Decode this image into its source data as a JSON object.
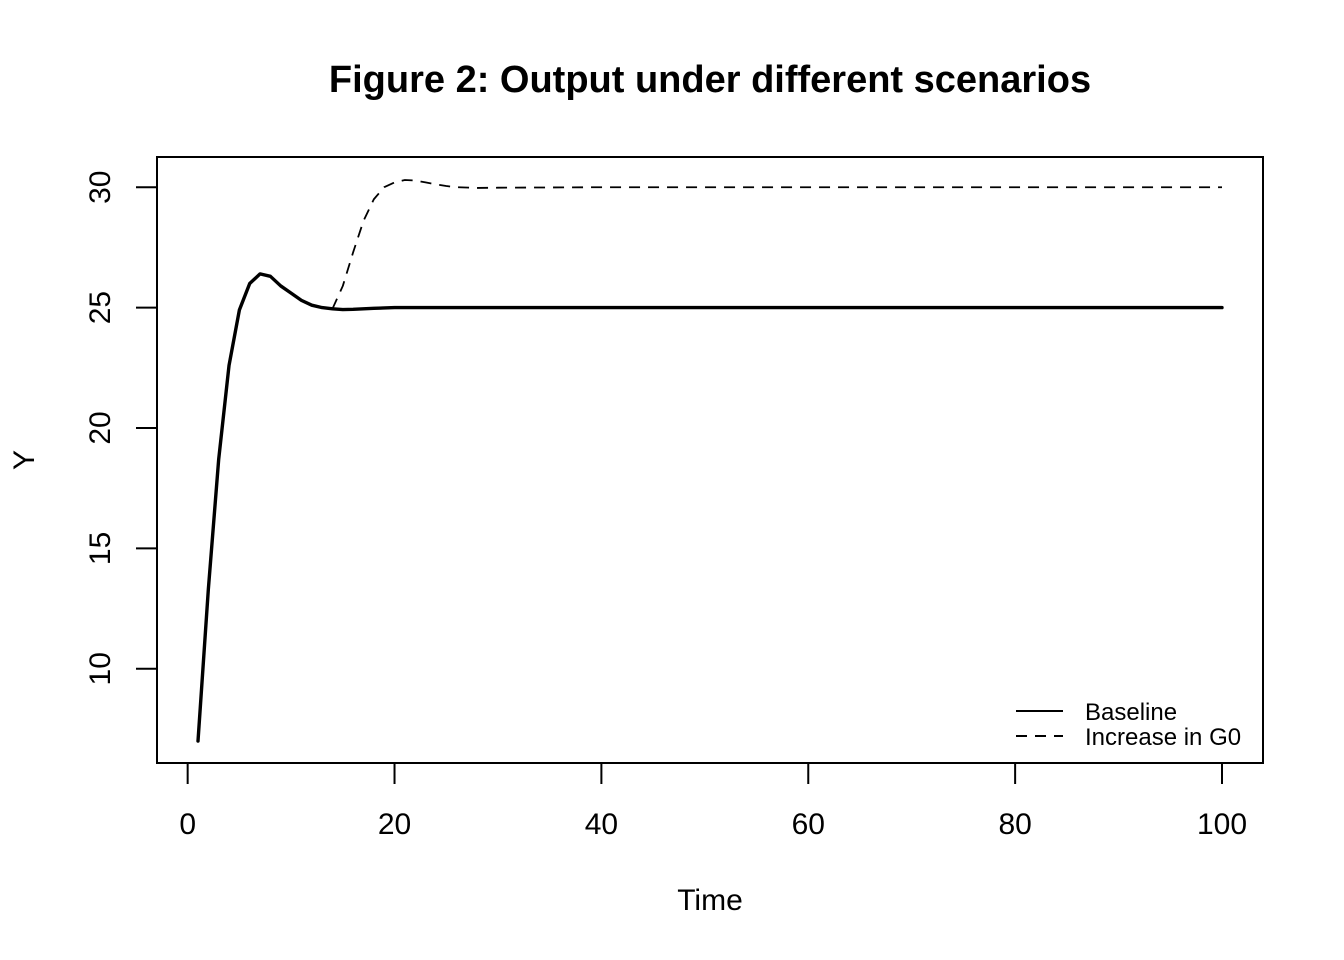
{
  "chart_data": {
    "type": "line",
    "title": "Figure 2: Output under different scenarios",
    "xlabel": "Time",
    "ylabel": "Y",
    "xlim": [
      1,
      100
    ],
    "ylim": [
      7,
      30.3
    ],
    "x_ticks": [
      0,
      20,
      40,
      60,
      80,
      100
    ],
    "y_ticks": [
      10,
      15,
      20,
      25,
      30
    ],
    "grid": false,
    "legend_position": "bottom-right",
    "series": [
      {
        "name": "Baseline",
        "style": "solid",
        "color": "#000000",
        "x": [
          1,
          2,
          3,
          4,
          5,
          6,
          7,
          8,
          9,
          10,
          11,
          12,
          13,
          14,
          15,
          16,
          18,
          20,
          25,
          30,
          40,
          50,
          60,
          70,
          80,
          90,
          100
        ],
        "y": [
          7.0,
          13.3,
          18.7,
          22.6,
          24.9,
          26.0,
          26.4,
          26.3,
          25.9,
          25.6,
          25.3,
          25.1,
          25.0,
          24.95,
          24.92,
          24.93,
          24.97,
          25.0,
          25.0,
          25.0,
          25.0,
          25.0,
          25.0,
          25.0,
          25.0,
          25.0,
          25.0
        ]
      },
      {
        "name": "Increase in G0",
        "style": "dashed",
        "color": "#000000",
        "x": [
          14,
          15,
          16,
          17,
          18,
          19,
          20,
          21,
          22,
          23,
          24,
          25,
          26,
          28,
          30,
          40,
          50,
          60,
          70,
          80,
          90,
          100
        ],
        "y": [
          24.95,
          25.9,
          27.3,
          28.6,
          29.5,
          30.0,
          30.2,
          30.3,
          30.28,
          30.2,
          30.12,
          30.05,
          30.0,
          29.97,
          29.98,
          30.0,
          30.0,
          30.0,
          30.0,
          30.0,
          30.0,
          30.0
        ]
      }
    ]
  }
}
